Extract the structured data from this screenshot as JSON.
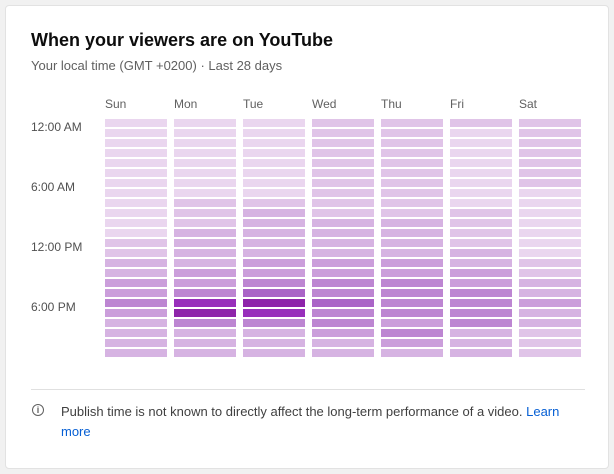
{
  "header": {
    "title": "When your viewers are on YouTube",
    "subtitle": "Your local time (GMT +0200) · Last 28 days"
  },
  "days": [
    "Sun",
    "Mon",
    "Tue",
    "Wed",
    "Thu",
    "Fri",
    "Sat"
  ],
  "time_labels": [
    "12:00 AM",
    "6:00 AM",
    "12:00 PM",
    "6:00 PM"
  ],
  "colors": {
    "accent": "#9c27b0",
    "link": "#065fd4",
    "heat_low": "#f3e6f6",
    "heat_high": "#8e24aa"
  },
  "chart_data": {
    "type": "heatmap",
    "title": "When your viewers are on YouTube",
    "x_categories": [
      "Sun",
      "Mon",
      "Tue",
      "Wed",
      "Thu",
      "Fri",
      "Sat"
    ],
    "y_labels": [
      "12:00 AM",
      "6:00 AM",
      "12:00 PM",
      "6:00 PM"
    ],
    "rows_per_column": 24,
    "values": [
      [
        1,
        1,
        1,
        1,
        1,
        1,
        1,
        1,
        1,
        1,
        1,
        1,
        2,
        2,
        3,
        3,
        4,
        4,
        5,
        4,
        3,
        3,
        3,
        3
      ],
      [
        1,
        1,
        1,
        1,
        1,
        1,
        1,
        1,
        2,
        2,
        2,
        3,
        3,
        3,
        3,
        4,
        4,
        5,
        7,
        8,
        5,
        3,
        3,
        3
      ],
      [
        1,
        1,
        1,
        1,
        1,
        1,
        1,
        1,
        2,
        3,
        3,
        3,
        3,
        3,
        4,
        4,
        5,
        6,
        8,
        7,
        5,
        3,
        3,
        3
      ],
      [
        2,
        2,
        2,
        2,
        2,
        2,
        2,
        2,
        2,
        2,
        3,
        3,
        3,
        3,
        4,
        4,
        5,
        5,
        6,
        5,
        5,
        4,
        3,
        3
      ],
      [
        2,
        2,
        2,
        2,
        2,
        2,
        2,
        2,
        2,
        2,
        3,
        3,
        3,
        3,
        4,
        4,
        5,
        5,
        5,
        5,
        4,
        5,
        4,
        3
      ],
      [
        2,
        1,
        1,
        1,
        1,
        1,
        1,
        1,
        1,
        2,
        2,
        2,
        2,
        3,
        3,
        4,
        4,
        5,
        5,
        5,
        5,
        3,
        3,
        3
      ],
      [
        2,
        2,
        2,
        2,
        2,
        2,
        2,
        1,
        1,
        1,
        1,
        1,
        1,
        1,
        2,
        2,
        3,
        3,
        4,
        3,
        3,
        2,
        2,
        2
      ]
    ]
  },
  "footer": {
    "note_text": "Publish time is not known to directly affect the long-term performance of a video. ",
    "link_text": "Learn more"
  }
}
